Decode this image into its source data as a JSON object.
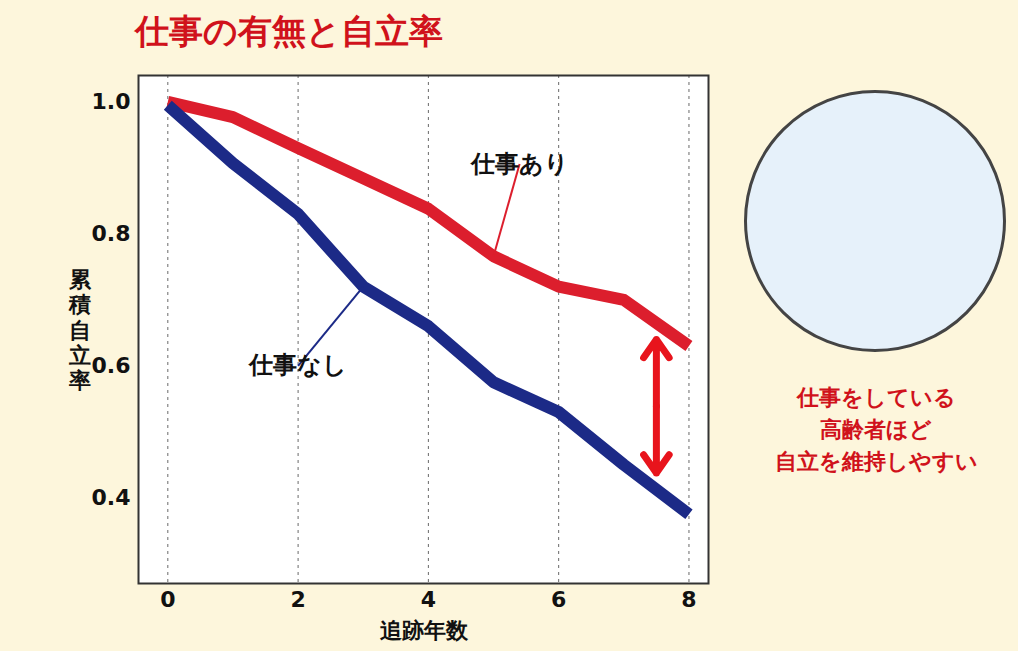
{
  "chart_data": {
    "type": "line",
    "title": "仕事の有無と自立率",
    "xlabel": "追跡年数",
    "ylabel": "累積自立率",
    "x": [
      0,
      1,
      2,
      3,
      4,
      5,
      6,
      7,
      8
    ],
    "series": [
      {
        "name": "仕事あり",
        "color": "#dc1e2d",
        "values": [
          1.0,
          0.977,
          0.93,
          0.884,
          0.838,
          0.766,
          0.72,
          0.7,
          0.63
        ]
      },
      {
        "name": "仕事なし",
        "color": "#1c2a87",
        "values": [
          0.995,
          0.907,
          0.83,
          0.72,
          0.66,
          0.575,
          0.53,
          0.45,
          0.375
        ]
      }
    ],
    "xlim": [
      -0.45,
      8.3
    ],
    "ylim": [
      0.27,
      1.04
    ],
    "xticks": [
      0,
      2,
      4,
      6,
      8
    ],
    "yticks": [
      0.4,
      0.6,
      0.8,
      {
        "value": 1,
        "label": "1.0"
      }
    ],
    "grid": "x",
    "annotation": [
      "仕事をしている",
      "高齢者ほど",
      "自立を維持しやすい"
    ]
  }
}
